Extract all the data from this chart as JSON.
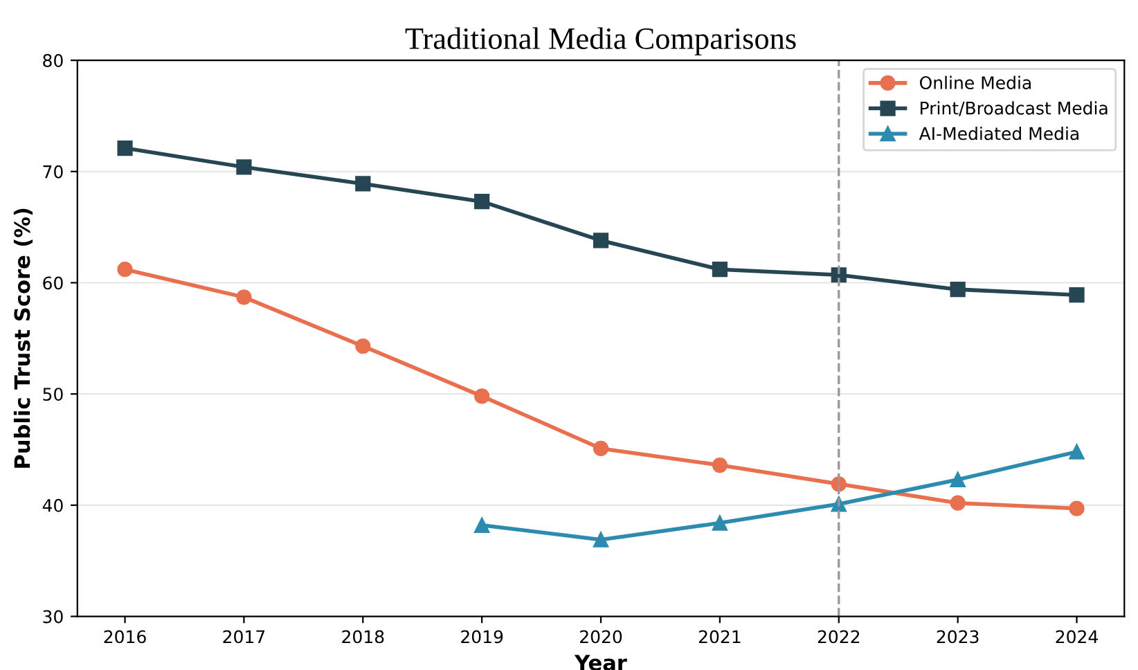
{
  "chart_data": {
    "type": "line",
    "title": "Traditional Media Comparisons",
    "xlabel": "Year",
    "ylabel": "Public Trust Score (%)",
    "x": [
      2016,
      2017,
      2018,
      2019,
      2020,
      2021,
      2022,
      2023,
      2024
    ],
    "series": [
      {
        "name": "Online Media",
        "color": "#e8704f",
        "marker": "circle",
        "values": [
          61.2,
          58.7,
          54.3,
          49.8,
          45.1,
          43.6,
          41.9,
          40.2,
          39.7
        ]
      },
      {
        "name": "Print/Broadcast Media",
        "color": "#264653",
        "marker": "square",
        "values": [
          72.1,
          70.4,
          68.9,
          67.3,
          63.8,
          61.2,
          60.7,
          59.4,
          58.9
        ]
      },
      {
        "name": "AI-Mediated Media",
        "color": "#2e8bb0",
        "marker": "triangle",
        "values": [
          null,
          null,
          null,
          38.2,
          36.9,
          38.4,
          40.1,
          42.3,
          44.8
        ]
      }
    ],
    "xlim": [
      2015.6,
      2024.4
    ],
    "xticks": [
      2016,
      2017,
      2018,
      2019,
      2020,
      2021,
      2022,
      2023,
      2024
    ],
    "ylim": [
      30,
      80
    ],
    "yticks": [
      30,
      40,
      50,
      60,
      70,
      80
    ],
    "ref_lines": [
      {
        "axis": "x",
        "value": 2022,
        "color": "#999999",
        "line_style": "dashed"
      }
    ],
    "grid": "y",
    "legend": "top right",
    "line_style": "solid"
  }
}
